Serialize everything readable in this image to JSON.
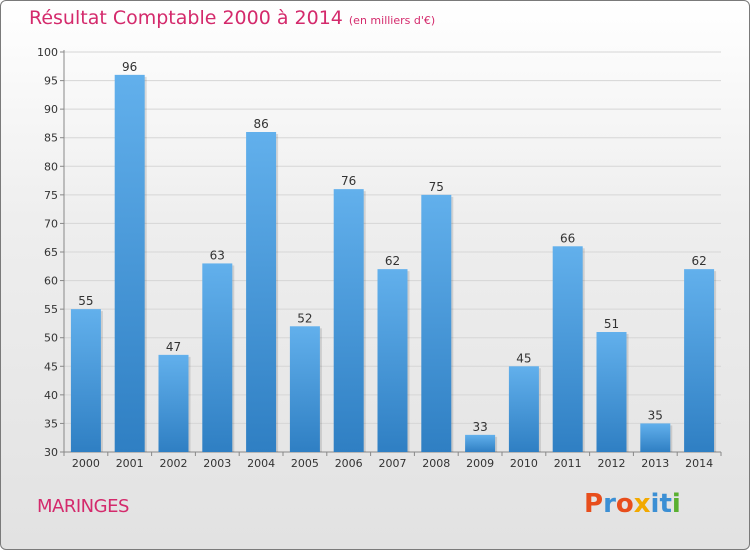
{
  "chart_data": {
    "type": "bar",
    "title": "Résultat Comptable 2000 à 2014",
    "subtitle": "(en milliers d'€)",
    "categories": [
      "2000",
      "2001",
      "2002",
      "2003",
      "2004",
      "2005",
      "2006",
      "2007",
      "2008",
      "2009",
      "2010",
      "2011",
      "2012",
      "2013",
      "2014"
    ],
    "values": [
      55,
      96,
      47,
      63,
      86,
      52,
      76,
      62,
      75,
      33,
      45,
      66,
      51,
      35,
      62
    ],
    "ylim": [
      30,
      100
    ],
    "yticks": [
      30,
      35,
      40,
      45,
      50,
      55,
      60,
      65,
      70,
      75,
      80,
      85,
      90,
      95,
      100
    ],
    "xlabel": "",
    "ylabel": "",
    "grid": true,
    "bar_color": "#3a8fd5"
  },
  "commune": "MARINGES",
  "logo": {
    "letters": [
      "P",
      "r",
      "o",
      "x",
      "i",
      "t",
      "i"
    ],
    "colors": [
      "#e84e1c",
      "#3b8fd4",
      "#e84e1c",
      "#f2a900",
      "#3b8fd4",
      "#3b8fd4",
      "#59b030"
    ]
  }
}
